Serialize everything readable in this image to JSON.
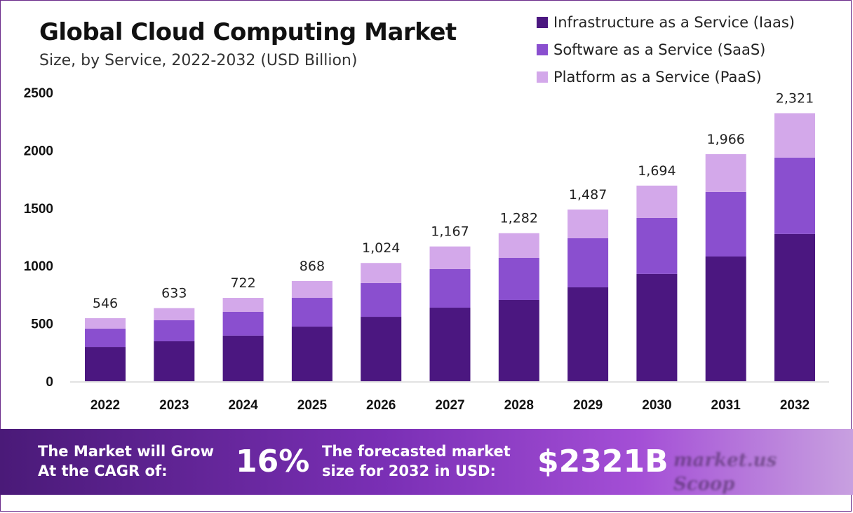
{
  "header": {
    "title": "Global Cloud Computing Market",
    "subtitle": "Size, by Service, 2022-2032 (USD Billion)"
  },
  "legend": [
    {
      "label": "Infrastructure as a Service (Iaas)",
      "color": "#4b1780"
    },
    {
      "label": "Software as a Service (SaaS)",
      "color": "#8a4fcf"
    },
    {
      "label": "Platform as a Service (PaaS)",
      "color": "#d3a8ea"
    }
  ],
  "chart_data": {
    "type": "bar",
    "stacked": true,
    "title": "Global Cloud Computing Market",
    "subtitle": "Size, by Service, 2022-2032 (USD Billion)",
    "xlabel": "",
    "ylabel": "",
    "ylim": [
      0,
      2500
    ],
    "yticks": [
      0,
      500,
      1000,
      1500,
      2000,
      2500
    ],
    "grid": false,
    "legend_position": "top-right",
    "categories": [
      "2022",
      "2023",
      "2024",
      "2025",
      "2026",
      "2027",
      "2028",
      "2029",
      "2030",
      "2031",
      "2032"
    ],
    "series": [
      {
        "name": "Infrastructure as a Service (Iaas)",
        "color": "#4b1780",
        "values": [
          297,
          346,
          395,
          473,
          558,
          637,
          704,
          813,
          929,
          1080,
          1275
        ]
      },
      {
        "name": "Software as a Service (SaaS)",
        "color": "#8a4fcf",
        "values": [
          158,
          182,
          206,
          249,
          292,
          334,
          364,
          425,
          485,
          559,
          661
        ]
      },
      {
        "name": "Platform as a Service (PaaS)",
        "color": "#d3a8ea",
        "values": [
          91,
          105,
          121,
          146,
          174,
          196,
          214,
          249,
          280,
          327,
          385
        ]
      }
    ],
    "totals": [
      546,
      633,
      722,
      868,
      1024,
      1167,
      1282,
      1487,
      1694,
      1966,
      2321
    ],
    "total_labels": [
      "546",
      "633",
      "722",
      "868",
      "1,024",
      "1,167",
      "1,282",
      "1,487",
      "1,694",
      "1,966",
      "2,321"
    ]
  },
  "banner": {
    "cagr_label_line1": "The Market will Grow",
    "cagr_label_line2": "At the CAGR of:",
    "cagr_value": "16%",
    "forecast_label_line1": "The forecasted market",
    "forecast_label_line2": "size for 2032 in USD:",
    "forecast_value": "$2321B"
  },
  "watermark": {
    "line1": "market.us",
    "line2": "Scoop"
  }
}
